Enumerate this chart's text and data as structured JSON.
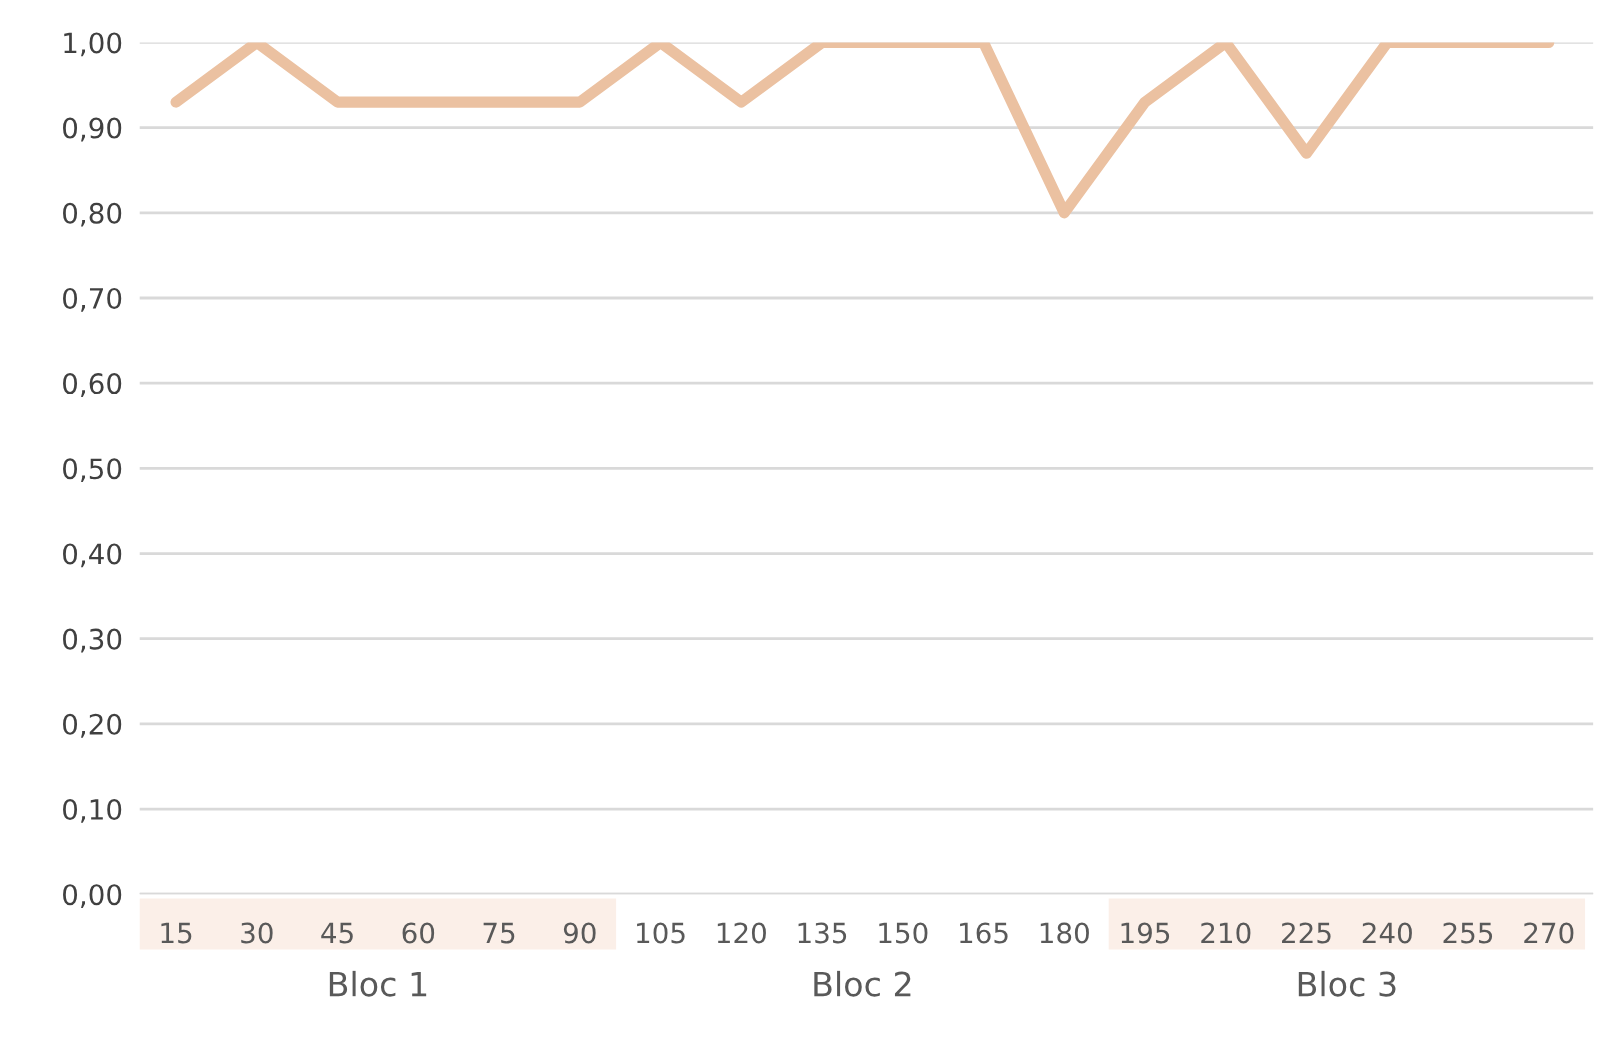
{
  "chart_data": {
    "type": "line",
    "categories": [
      "15",
      "30",
      "45",
      "60",
      "75",
      "90",
      "105",
      "120",
      "135",
      "150",
      "165",
      "180",
      "195",
      "210",
      "225",
      "240",
      "255",
      "270"
    ],
    "series": [
      {
        "color": "#ebc1a1",
        "values": [
          0.93,
          1.0,
          0.93,
          0.93,
          0.93,
          0.93,
          1.0,
          0.93,
          1.0,
          1.0,
          1.0,
          0.8,
          0.93,
          1.0,
          0.87,
          1.0,
          1.0,
          1.0
        ]
      }
    ],
    "ylim": [
      0,
      1
    ],
    "yticks": [
      {
        "value": 0,
        "label": "0,00"
      },
      {
        "value": 0.1,
        "label": "0,10"
      },
      {
        "value": 0.2,
        "label": "0,20"
      },
      {
        "value": 0.3,
        "label": "0,30"
      },
      {
        "value": 0.4,
        "label": "0,40"
      },
      {
        "value": 0.5,
        "label": "0,50"
      },
      {
        "value": 0.6,
        "label": "0,60"
      },
      {
        "value": 0.7,
        "label": "0,70"
      },
      {
        "value": 0.8,
        "label": "0,80"
      },
      {
        "value": 0.9,
        "label": "0,90"
      },
      {
        "value": 1.0,
        "label": "1,00"
      }
    ],
    "grid": "y",
    "line_style": "solid",
    "marker": "none",
    "annotations": [
      "Bloc 1",
      "Bloc 2",
      "Bloc 3"
    ]
  }
}
